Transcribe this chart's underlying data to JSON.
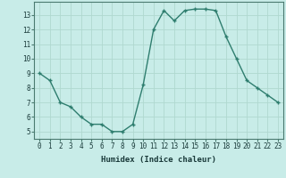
{
  "x": [
    0,
    1,
    2,
    3,
    4,
    5,
    6,
    7,
    8,
    9,
    10,
    11,
    12,
    13,
    14,
    15,
    16,
    17,
    18,
    19,
    20,
    21,
    22,
    23
  ],
  "y": [
    9.0,
    8.5,
    7.0,
    6.7,
    6.0,
    5.5,
    5.5,
    5.0,
    5.0,
    5.5,
    8.2,
    12.0,
    13.3,
    12.6,
    13.3,
    13.4,
    13.4,
    13.3,
    11.5,
    10.0,
    8.5,
    8.0,
    7.5,
    7.0
  ],
  "line_color": "#2e7d6e",
  "marker": "+",
  "marker_size": 3.5,
  "bg_color": "#c8ece8",
  "grid_color": "#b0d8d0",
  "xlabel": "Humidex (Indice chaleur)",
  "xlim": [
    -0.5,
    23.5
  ],
  "ylim": [
    4.5,
    13.9
  ],
  "yticks": [
    5,
    6,
    7,
    8,
    9,
    10,
    11,
    12,
    13
  ],
  "xticks": [
    0,
    1,
    2,
    3,
    4,
    5,
    6,
    7,
    8,
    9,
    10,
    11,
    12,
    13,
    14,
    15,
    16,
    17,
    18,
    19,
    20,
    21,
    22,
    23
  ],
  "tick_label_size": 5.5,
  "xlabel_size": 6.5,
  "line_width": 1.0,
  "marker_color": "#2e7d6e"
}
